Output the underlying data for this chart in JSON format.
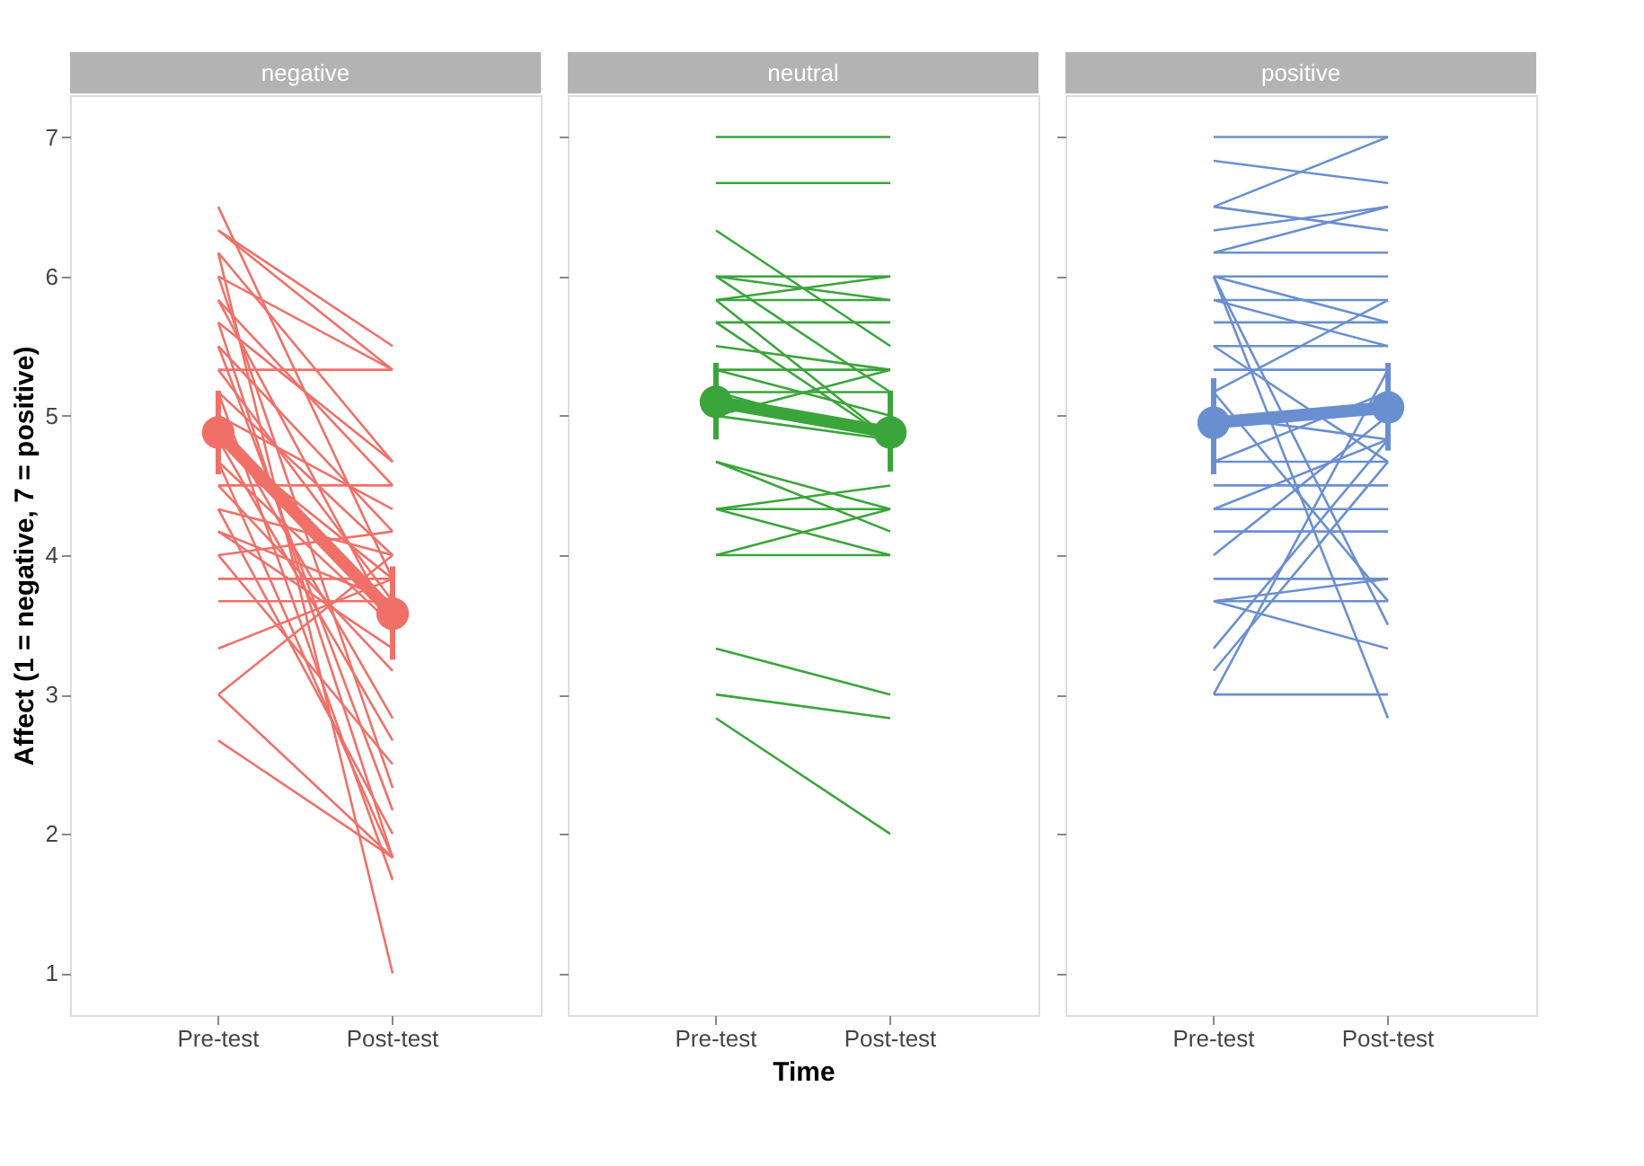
{
  "chart_data": [
    {
      "type": "line",
      "title": "negative",
      "ylabel": "Affect (1 = negative, 7 = positive)",
      "categories": [
        "Pre-test",
        "Post-test"
      ],
      "ylim": [
        0.7,
        7.3
      ],
      "yticks": [
        1,
        2,
        3,
        4,
        5,
        6,
        7
      ],
      "grid": false,
      "line_style": "solid",
      "series": [
        {
          "color": "#f07068",
          "values": [
            6.5,
            3.83
          ]
        },
        {
          "color": "#f07068",
          "values": [
            6.33,
            5.5
          ]
        },
        {
          "color": "#f07068",
          "values": [
            6.33,
            5.33
          ]
        },
        {
          "color": "#f07068",
          "values": [
            6.17,
            1.0
          ]
        },
        {
          "color": "#f07068",
          "values": [
            6.17,
            4.67
          ]
        },
        {
          "color": "#f07068",
          "values": [
            6.0,
            5.33
          ]
        },
        {
          "color": "#f07068",
          "values": [
            6.0,
            2.33
          ]
        },
        {
          "color": "#f07068",
          "values": [
            5.83,
            4.5
          ]
        },
        {
          "color": "#f07068",
          "values": [
            5.83,
            3.5
          ]
        },
        {
          "color": "#f07068",
          "values": [
            5.67,
            4.67
          ]
        },
        {
          "color": "#f07068",
          "values": [
            5.67,
            1.83
          ]
        },
        {
          "color": "#f07068",
          "values": [
            5.5,
            4.17
          ]
        },
        {
          "color": "#f07068",
          "values": [
            5.5,
            2.17
          ]
        },
        {
          "color": "#f07068",
          "values": [
            5.33,
            5.33
          ]
        },
        {
          "color": "#f07068",
          "values": [
            5.33,
            3.67
          ]
        },
        {
          "color": "#f07068",
          "values": [
            5.17,
            4.0
          ]
        },
        {
          "color": "#f07068",
          "values": [
            5.17,
            1.67
          ]
        },
        {
          "color": "#f07068",
          "values": [
            5.0,
            4.33
          ]
        },
        {
          "color": "#f07068",
          "values": [
            5.0,
            2.83
          ]
        },
        {
          "color": "#f07068",
          "values": [
            4.83,
            3.83
          ]
        },
        {
          "color": "#f07068",
          "values": [
            4.83,
            2.67
          ]
        },
        {
          "color": "#f07068",
          "values": [
            4.67,
            3.5
          ]
        },
        {
          "color": "#f07068",
          "values": [
            4.67,
            1.83
          ]
        },
        {
          "color": "#f07068",
          "values": [
            4.5,
            4.5
          ]
        },
        {
          "color": "#f07068",
          "values": [
            4.5,
            3.17
          ]
        },
        {
          "color": "#f07068",
          "values": [
            4.33,
            4.0
          ]
        },
        {
          "color": "#f07068",
          "values": [
            4.33,
            2.0
          ]
        },
        {
          "color": "#f07068",
          "values": [
            4.17,
            3.33
          ]
        },
        {
          "color": "#f07068",
          "values": [
            4.17,
            3.67
          ]
        },
        {
          "color": "#f07068",
          "values": [
            4.0,
            2.5
          ]
        },
        {
          "color": "#f07068",
          "values": [
            4.0,
            4.17
          ]
        },
        {
          "color": "#f07068",
          "values": [
            3.83,
            3.83
          ]
        },
        {
          "color": "#f07068",
          "values": [
            3.67,
            3.67
          ]
        },
        {
          "color": "#f07068",
          "values": [
            3.33,
            3.83
          ]
        },
        {
          "color": "#f07068",
          "values": [
            3.0,
            4.0
          ]
        },
        {
          "color": "#f07068",
          "values": [
            3.0,
            1.83
          ]
        },
        {
          "color": "#f07068",
          "values": [
            2.67,
            1.83
          ]
        },
        {
          "color": "#f07068",
          "values": [
            4.88,
            3.58
          ],
          "errors": [
            [
              4.58,
              5.18
            ],
            [
              3.25,
              3.92
            ]
          ],
          "marker": "circle"
        }
      ]
    },
    {
      "type": "line",
      "title": "neutral",
      "xlabel": "Time",
      "categories": [
        "Pre-test",
        "Post-test"
      ],
      "ylim": [
        0.7,
        7.3
      ],
      "yticks": [
        1,
        2,
        3,
        4,
        5,
        6,
        7
      ],
      "grid": false,
      "line_style": "solid",
      "tick_labels": "x",
      "series": [
        {
          "color": "#3aa53a",
          "values": [
            7.0,
            7.0
          ]
        },
        {
          "color": "#3aa53a",
          "values": [
            6.67,
            6.67
          ]
        },
        {
          "color": "#3aa53a",
          "values": [
            6.33,
            5.5
          ]
        },
        {
          "color": "#3aa53a",
          "values": [
            6.0,
            6.0
          ]
        },
        {
          "color": "#3aa53a",
          "values": [
            6.0,
            5.83
          ]
        },
        {
          "color": "#3aa53a",
          "values": [
            6.0,
            5.17
          ]
        },
        {
          "color": "#3aa53a",
          "values": [
            5.83,
            6.0
          ]
        },
        {
          "color": "#3aa53a",
          "values": [
            5.83,
            5.83
          ]
        },
        {
          "color": "#3aa53a",
          "values": [
            5.83,
            4.83
          ]
        },
        {
          "color": "#3aa53a",
          "values": [
            5.67,
            5.67
          ]
        },
        {
          "color": "#3aa53a",
          "values": [
            5.67,
            4.83
          ]
        },
        {
          "color": "#3aa53a",
          "values": [
            5.5,
            5.33
          ]
        },
        {
          "color": "#3aa53a",
          "values": [
            5.33,
            5.33
          ]
        },
        {
          "color": "#3aa53a",
          "values": [
            5.33,
            5.0
          ]
        },
        {
          "color": "#3aa53a",
          "values": [
            5.17,
            5.17
          ]
        },
        {
          "color": "#3aa53a",
          "values": [
            5.17,
            4.83
          ]
        },
        {
          "color": "#3aa53a",
          "values": [
            5.0,
            5.33
          ]
        },
        {
          "color": "#3aa53a",
          "values": [
            5.0,
            4.83
          ]
        },
        {
          "color": "#3aa53a",
          "values": [
            4.67,
            4.17
          ]
        },
        {
          "color": "#3aa53a",
          "values": [
            4.67,
            4.33
          ]
        },
        {
          "color": "#3aa53a",
          "values": [
            4.33,
            4.5
          ]
        },
        {
          "color": "#3aa53a",
          "values": [
            4.33,
            4.33
          ]
        },
        {
          "color": "#3aa53a",
          "values": [
            4.33,
            4.0
          ]
        },
        {
          "color": "#3aa53a",
          "values": [
            4.0,
            4.0
          ]
        },
        {
          "color": "#3aa53a",
          "values": [
            4.0,
            4.33
          ]
        },
        {
          "color": "#3aa53a",
          "values": [
            3.33,
            3.0
          ]
        },
        {
          "color": "#3aa53a",
          "values": [
            3.0,
            2.83
          ]
        },
        {
          "color": "#3aa53a",
          "values": [
            2.83,
            2.0
          ]
        },
        {
          "color": "#3aa53a",
          "values": [
            5.1,
            4.88
          ],
          "errors": [
            [
              4.83,
              5.38
            ],
            [
              4.6,
              5.18
            ]
          ],
          "marker": "circle"
        }
      ]
    },
    {
      "type": "line",
      "title": "positive",
      "categories": [
        "Pre-test",
        "Post-test"
      ],
      "ylim": [
        0.7,
        7.3
      ],
      "yticks": [
        1,
        2,
        3,
        4,
        5,
        6,
        7
      ],
      "grid": false,
      "line_style": "solid",
      "tick_labels": "x",
      "series": [
        {
          "color": "#6a8fd0",
          "values": [
            7.0,
            7.0
          ]
        },
        {
          "color": "#6a8fd0",
          "values": [
            6.83,
            6.67
          ]
        },
        {
          "color": "#6a8fd0",
          "values": [
            6.5,
            6.33
          ]
        },
        {
          "color": "#6a8fd0",
          "values": [
            6.5,
            7.0
          ]
        },
        {
          "color": "#6a8fd0",
          "values": [
            6.33,
            6.5
          ]
        },
        {
          "color": "#6a8fd0",
          "values": [
            6.17,
            6.17
          ]
        },
        {
          "color": "#6a8fd0",
          "values": [
            6.17,
            6.5
          ]
        },
        {
          "color": "#6a8fd0",
          "values": [
            6.0,
            6.0
          ]
        },
        {
          "color": "#6a8fd0",
          "values": [
            6.0,
            3.5
          ]
        },
        {
          "color": "#6a8fd0",
          "values": [
            6.0,
            2.83
          ]
        },
        {
          "color": "#6a8fd0",
          "values": [
            6.0,
            5.67
          ]
        },
        {
          "color": "#6a8fd0",
          "values": [
            5.83,
            5.83
          ]
        },
        {
          "color": "#6a8fd0",
          "values": [
            5.83,
            5.5
          ]
        },
        {
          "color": "#6a8fd0",
          "values": [
            5.67,
            5.67
          ]
        },
        {
          "color": "#6a8fd0",
          "values": [
            5.5,
            5.5
          ]
        },
        {
          "color": "#6a8fd0",
          "values": [
            5.5,
            4.67
          ]
        },
        {
          "color": "#6a8fd0",
          "values": [
            5.33,
            5.33
          ]
        },
        {
          "color": "#6a8fd0",
          "values": [
            5.17,
            5.83
          ]
        },
        {
          "color": "#6a8fd0",
          "values": [
            5.17,
            3.67
          ]
        },
        {
          "color": "#6a8fd0",
          "values": [
            5.0,
            4.83
          ]
        },
        {
          "color": "#6a8fd0",
          "values": [
            4.67,
            4.67
          ]
        },
        {
          "color": "#6a8fd0",
          "values": [
            4.67,
            5.17
          ]
        },
        {
          "color": "#6a8fd0",
          "values": [
            4.5,
            4.5
          ]
        },
        {
          "color": "#6a8fd0",
          "values": [
            4.33,
            4.33
          ]
        },
        {
          "color": "#6a8fd0",
          "values": [
            4.33,
            4.83
          ]
        },
        {
          "color": "#6a8fd0",
          "values": [
            4.17,
            4.17
          ]
        },
        {
          "color": "#6a8fd0",
          "values": [
            4.0,
            5.0
          ]
        },
        {
          "color": "#6a8fd0",
          "values": [
            3.83,
            3.83
          ]
        },
        {
          "color": "#6a8fd0",
          "values": [
            3.67,
            3.67
          ]
        },
        {
          "color": "#6a8fd0",
          "values": [
            3.67,
            3.83
          ]
        },
        {
          "color": "#6a8fd0",
          "values": [
            3.67,
            3.33
          ]
        },
        {
          "color": "#6a8fd0",
          "values": [
            3.33,
            4.83
          ]
        },
        {
          "color": "#6a8fd0",
          "values": [
            3.17,
            4.67
          ]
        },
        {
          "color": "#6a8fd0",
          "values": [
            3.0,
            3.0
          ]
        },
        {
          "color": "#6a8fd0",
          "values": [
            3.0,
            5.33
          ]
        },
        {
          "color": "#6a8fd0",
          "values": [
            4.95,
            5.06
          ],
          "errors": [
            [
              4.58,
              5.27
            ],
            [
              4.75,
              5.38
            ]
          ],
          "marker": "circle"
        }
      ]
    }
  ]
}
